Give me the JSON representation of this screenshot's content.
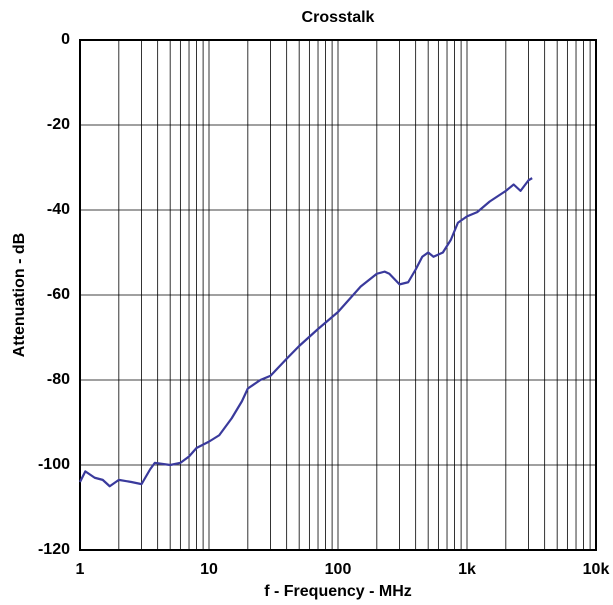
{
  "chart_data": {
    "type": "line",
    "title": "Crosstalk",
    "x_label": "f - Frequency - MHz",
    "y_label": "Attenuation - dB",
    "x_log": true,
    "grid": true,
    "xlim": [
      1,
      10000
    ],
    "xticks": [
      1,
      10,
      100,
      {
        "value": 1000,
        "label": "1k"
      },
      {
        "value": 10000,
        "label": "10k"
      }
    ],
    "ylim": [
      -120,
      0
    ],
    "yticks": [
      -120,
      -100,
      -80,
      -60,
      -40,
      -20,
      0
    ],
    "series": [
      {
        "name": "Crosstalk",
        "color": "#3a3a9c",
        "x": [
          1,
          1.1,
          1.3,
          1.5,
          1.7,
          2,
          2.5,
          3,
          3.5,
          3.8,
          5,
          6,
          7,
          8,
          10,
          12,
          15,
          18,
          20,
          25,
          30,
          40,
          50,
          70,
          100,
          150,
          200,
          230,
          250,
          300,
          350,
          400,
          450,
          500,
          550,
          650,
          750,
          850,
          1000,
          1200,
          1500,
          2000,
          2300,
          2600,
          3000,
          3200
        ],
        "values": [
          -104,
          -101.5,
          -103,
          -103.5,
          -105,
          -103.5,
          -104,
          -104.5,
          -101,
          -99.5,
          -100,
          -99.5,
          -98,
          -96,
          -94.5,
          -93,
          -89,
          -85,
          -82,
          -80,
          -79,
          -75,
          -72,
          -68,
          -64,
          -58,
          -55,
          -54.5,
          -55,
          -57.5,
          -57,
          -54,
          -51,
          -50,
          -51,
          -50,
          -47,
          -43,
          -41.5,
          -40.5,
          -38,
          -35.5,
          -34,
          -35.5,
          -33,
          -32.5
        ]
      }
    ]
  }
}
